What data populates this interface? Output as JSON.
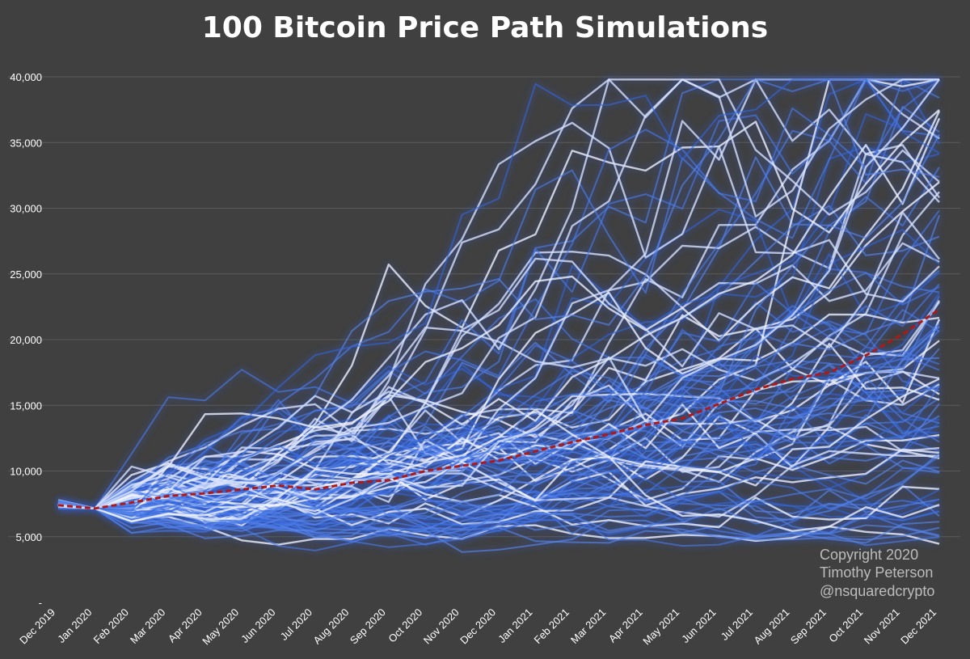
{
  "chart_data": {
    "type": "line",
    "title": "100 Bitcoin Price Path Simulations",
    "xlabel": "",
    "ylabel": "",
    "x": [
      "Dec 2019",
      "Jan 2020",
      "Feb 2020",
      "Mar 2020",
      "Apr 2020",
      "May 2020",
      "Jun 2020",
      "Jul 2020",
      "Aug 2020",
      "Sep 2020",
      "Oct 2020",
      "Nov 2020",
      "Dec 2020",
      "Jan 2021",
      "Feb 2021",
      "Mar 2021",
      "Apr 2021",
      "May 2021",
      "Jun 2021",
      "Jul 2021",
      "Aug 2021",
      "Sep 2021",
      "Oct 2021",
      "Nov 2021",
      "Dec 2021"
    ],
    "ylim": [
      0,
      40000
    ],
    "yticks": [
      0,
      5000,
      10000,
      15000,
      20000,
      25000,
      30000,
      35000,
      40000
    ],
    "ytick_labels": [
      "-",
      "5,000",
      "10,000",
      "15,000",
      "20,000",
      "25,000",
      "30,000",
      "35,000",
      "40,000"
    ],
    "grid": true,
    "legend": "none",
    "series_count": 100,
    "mean_path": [
      7400,
      7150,
      7600,
      8100,
      8300,
      8600,
      8900,
      8600,
      9100,
      9300,
      10000,
      10400,
      10800,
      11500,
      12200,
      12800,
      13500,
      14000,
      15100,
      16200,
      17000,
      17500,
      18800,
      20400,
      22300
    ],
    "simulated_start": 7150,
    "simulated_median_end": 20000,
    "simulated_range_end": [
      9000,
      40000
    ],
    "colors": {
      "background": "#404040",
      "grid": "#5a5a5a",
      "path_blue": "#4f7fe8",
      "path_white": "#eef2ff",
      "glow": "#2f66ff",
      "mean_line": "#b01818",
      "text": "#ffffff",
      "credit": "#bcbcbc"
    },
    "annotations": [
      "Copyright 2020",
      "Timothy Peterson",
      "@nsquaredcrypto"
    ]
  }
}
